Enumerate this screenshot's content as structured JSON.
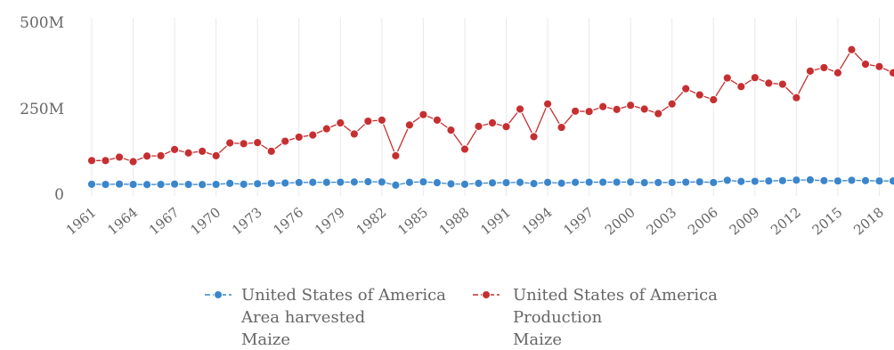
{
  "chart_data": {
    "type": "line",
    "title": "",
    "xlabel": "",
    "ylabel": "",
    "ylim": [
      0,
      500000000
    ],
    "y_ticks": [
      {
        "value": 0,
        "label": "0"
      },
      {
        "value": 250000000,
        "label": "250M"
      },
      {
        "value": 500000000,
        "label": "500M"
      }
    ],
    "x": [
      1961,
      1962,
      1963,
      1964,
      1965,
      1966,
      1967,
      1968,
      1969,
      1970,
      1971,
      1972,
      1973,
      1974,
      1975,
      1976,
      1977,
      1978,
      1979,
      1980,
      1981,
      1982,
      1983,
      1984,
      1985,
      1986,
      1987,
      1988,
      1989,
      1990,
      1991,
      1992,
      1993,
      1994,
      1995,
      1996,
      1997,
      1998,
      1999,
      2000,
      2001,
      2002,
      2003,
      2004,
      2005,
      2006,
      2007,
      2008,
      2009,
      2010,
      2011,
      2012,
      2013,
      2014,
      2015,
      2016,
      2017,
      2018,
      2019
    ],
    "x_tick_labels": [
      "1961",
      "1964",
      "1967",
      "1970",
      "1973",
      "1976",
      "1979",
      "1982",
      "1985",
      "1988",
      "1991",
      "1994",
      "1997",
      "2000",
      "2003",
      "2006",
      "2009",
      "2012",
      "2015",
      "2018"
    ],
    "grid": "vertical",
    "legend_position": "bottom",
    "series": [
      {
        "name_lines": [
          "United States of America",
          "Area harvested",
          "Maize"
        ],
        "color": "#3a86cc",
        "values": [
          23500000,
          23000000,
          24000000,
          23000000,
          22500000,
          23000000,
          24000000,
          23000000,
          22500000,
          23000000,
          26000000,
          23500000,
          25000000,
          26000000,
          27000000,
          28500000,
          29000000,
          29000000,
          29500000,
          30000000,
          31000000,
          30000000,
          21000000,
          29000000,
          30500000,
          28000000,
          24500000,
          23500000,
          26000000,
          27500000,
          28000000,
          29000000,
          25500000,
          29000000,
          26500000,
          29000000,
          29500000,
          29500000,
          29500000,
          30000000,
          28000000,
          28500000,
          28500000,
          29500000,
          30500000,
          28500000,
          35000000,
          31500000,
          32000000,
          33000000,
          34000000,
          35500000,
          36000000,
          34000000,
          33000000,
          35000000,
          34000000,
          33000000,
          33000000
        ]
      },
      {
        "name_lines": [
          "United States of America",
          "Production",
          "Maize"
        ],
        "color": "#c62f31",
        "values": [
          92000000,
          92000000,
          102000000,
          89000000,
          105000000,
          106000000,
          124000000,
          114000000,
          119000000,
          106000000,
          143000000,
          141000000,
          144000000,
          119000000,
          148000000,
          160000000,
          166000000,
          184000000,
          201000000,
          169000000,
          206000000,
          209000000,
          106000000,
          195000000,
          225000000,
          209000000,
          180000000,
          125000000,
          191000000,
          201000000,
          190000000,
          241000000,
          161000000,
          256000000,
          188000000,
          235000000,
          234000000,
          248000000,
          240000000,
          252000000,
          241000000,
          228000000,
          256000000,
          300000000,
          282000000,
          268000000,
          331000000,
          306000000,
          332000000,
          316000000,
          313000000,
          274000000,
          351000000,
          361000000,
          346000000,
          413000000,
          371000000,
          364000000,
          346000000
        ]
      }
    ]
  }
}
